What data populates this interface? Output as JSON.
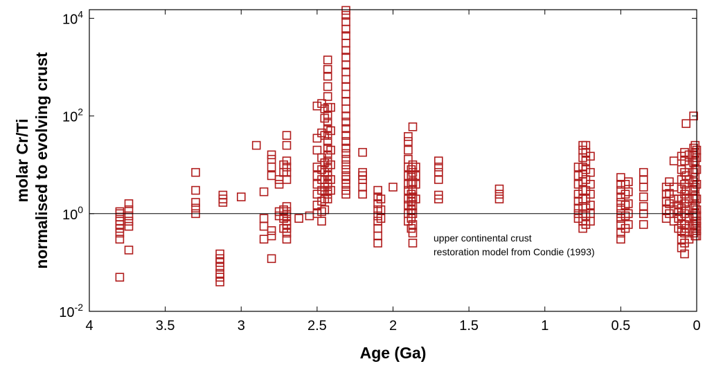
{
  "chart_data": {
    "type": "scatter",
    "xlabel": "Age (Ga)",
    "ylabel": [
      "molar Cr/Ti",
      "normalised to evolving crust"
    ],
    "x_reversed": true,
    "y_scale": "log",
    "xlim": [
      0,
      4
    ],
    "ylim": [
      0.01,
      15000
    ],
    "x_ticks": [
      "4",
      "3.5",
      "3",
      "2.5",
      "2",
      "1.5",
      "1",
      "0.5",
      "0"
    ],
    "y_ticks": [
      {
        "base": "10",
        "exp": "-2"
      },
      {
        "base": "10",
        "exp": "0"
      },
      {
        "base": "10",
        "exp": "2"
      },
      {
        "base": "10",
        "exp": "4"
      }
    ],
    "reference_line": {
      "y": 1
    },
    "annotation": [
      "upper continental crust",
      "restoration model from Condie (1993)"
    ],
    "marker": "open-square",
    "marker_color": "#b01c1c",
    "points": [
      [
        3.8,
        0.05
      ],
      [
        3.8,
        0.3
      ],
      [
        3.8,
        0.4
      ],
      [
        3.8,
        0.5
      ],
      [
        3.8,
        0.6
      ],
      [
        3.8,
        0.7
      ],
      [
        3.8,
        0.85
      ],
      [
        3.8,
        1.0
      ],
      [
        3.8,
        1.1
      ],
      [
        3.74,
        0.18
      ],
      [
        3.74,
        0.55
      ],
      [
        3.74,
        0.7
      ],
      [
        3.74,
        0.9
      ],
      [
        3.74,
        1.2
      ],
      [
        3.74,
        1.6
      ],
      [
        3.3,
        1.0
      ],
      [
        3.3,
        1.3
      ],
      [
        3.3,
        1.7
      ],
      [
        3.3,
        3.0
      ],
      [
        3.3,
        7.0
      ],
      [
        3.14,
        0.04
      ],
      [
        3.14,
        0.05
      ],
      [
        3.14,
        0.06
      ],
      [
        3.14,
        0.08
      ],
      [
        3.14,
        0.1
      ],
      [
        3.14,
        0.12
      ],
      [
        3.14,
        0.15
      ],
      [
        3.12,
        1.7
      ],
      [
        3.12,
        2.0
      ],
      [
        3.12,
        2.4
      ],
      [
        3.0,
        2.2
      ],
      [
        2.9,
        25
      ],
      [
        2.85,
        0.3
      ],
      [
        2.85,
        0.55
      ],
      [
        2.85,
        0.8
      ],
      [
        2.85,
        2.8
      ],
      [
        2.8,
        0.12
      ],
      [
        2.8,
        0.35
      ],
      [
        2.8,
        0.45
      ],
      [
        2.8,
        6
      ],
      [
        2.8,
        9
      ],
      [
        2.8,
        13
      ],
      [
        2.8,
        16
      ],
      [
        2.75,
        0.9
      ],
      [
        2.75,
        1.1
      ],
      [
        2.75,
        4
      ],
      [
        2.75,
        5
      ],
      [
        2.72,
        0.5
      ],
      [
        2.72,
        0.8
      ],
      [
        2.72,
        1.2
      ],
      [
        2.72,
        7
      ],
      [
        2.72,
        10
      ],
      [
        2.7,
        0.3
      ],
      [
        2.7,
        0.4
      ],
      [
        2.7,
        0.5
      ],
      [
        2.7,
        0.6
      ],
      [
        2.7,
        0.7
      ],
      [
        2.7,
        0.9
      ],
      [
        2.7,
        1.1
      ],
      [
        2.7,
        1.4
      ],
      [
        2.7,
        5
      ],
      [
        2.7,
        7
      ],
      [
        2.7,
        9
      ],
      [
        2.7,
        12
      ],
      [
        2.7,
        25
      ],
      [
        2.7,
        40
      ],
      [
        2.62,
        0.8
      ],
      [
        2.55,
        0.9
      ],
      [
        2.5,
        1.0
      ],
      [
        2.5,
        1.5
      ],
      [
        2.5,
        2.5
      ],
      [
        2.5,
        4
      ],
      [
        2.5,
        6
      ],
      [
        2.5,
        9
      ],
      [
        2.5,
        20
      ],
      [
        2.5,
        35
      ],
      [
        2.5,
        160
      ],
      [
        2.47,
        0.7
      ],
      [
        2.47,
        1.1
      ],
      [
        2.47,
        1.8
      ],
      [
        2.47,
        3
      ],
      [
        2.47,
        5
      ],
      [
        2.47,
        8
      ],
      [
        2.47,
        14
      ],
      [
        2.47,
        45
      ],
      [
        2.47,
        180
      ],
      [
        2.45,
        1.2
      ],
      [
        2.45,
        2
      ],
      [
        2.45,
        2.8
      ],
      [
        2.45,
        3.5
      ],
      [
        2.45,
        5
      ],
      [
        2.45,
        7
      ],
      [
        2.45,
        11
      ],
      [
        2.45,
        40
      ],
      [
        2.45,
        90
      ],
      [
        2.45,
        140
      ],
      [
        2.43,
        2
      ],
      [
        2.43,
        2.5
      ],
      [
        2.43,
        3
      ],
      [
        2.43,
        4
      ],
      [
        2.43,
        5
      ],
      [
        2.43,
        6
      ],
      [
        2.43,
        7
      ],
      [
        2.43,
        9
      ],
      [
        2.43,
        12
      ],
      [
        2.43,
        16
      ],
      [
        2.43,
        22
      ],
      [
        2.43,
        30
      ],
      [
        2.43,
        40
      ],
      [
        2.43,
        55
      ],
      [
        2.43,
        75
      ],
      [
        2.43,
        100
      ],
      [
        2.43,
        150
      ],
      [
        2.43,
        250
      ],
      [
        2.43,
        400
      ],
      [
        2.43,
        650
      ],
      [
        2.43,
        900
      ],
      [
        2.43,
        1400
      ],
      [
        2.41,
        3
      ],
      [
        2.41,
        5
      ],
      [
        2.41,
        10
      ],
      [
        2.41,
        20
      ],
      [
        2.41,
        50
      ],
      [
        2.41,
        150
      ],
      [
        2.31,
        2.5
      ],
      [
        2.31,
        3
      ],
      [
        2.31,
        4
      ],
      [
        2.31,
        5
      ],
      [
        2.31,
        6
      ],
      [
        2.31,
        8
      ],
      [
        2.31,
        10
      ],
      [
        2.31,
        13
      ],
      [
        2.31,
        17
      ],
      [
        2.31,
        22
      ],
      [
        2.31,
        30
      ],
      [
        2.31,
        40
      ],
      [
        2.31,
        55
      ],
      [
        2.31,
        75
      ],
      [
        2.31,
        100
      ],
      [
        2.31,
        140
      ],
      [
        2.31,
        200
      ],
      [
        2.31,
        280
      ],
      [
        2.31,
        400
      ],
      [
        2.31,
        560
      ],
      [
        2.31,
        800
      ],
      [
        2.31,
        1100
      ],
      [
        2.31,
        1600
      ],
      [
        2.31,
        2200
      ],
      [
        2.31,
        3100
      ],
      [
        2.31,
        4400
      ],
      [
        2.31,
        6000
      ],
      [
        2.31,
        8500
      ],
      [
        2.31,
        11500
      ],
      [
        2.31,
        14500
      ],
      [
        2.2,
        2.5
      ],
      [
        2.2,
        3.5
      ],
      [
        2.2,
        5
      ],
      [
        2.2,
        6
      ],
      [
        2.2,
        7
      ],
      [
        2.2,
        18
      ],
      [
        2.1,
        0.25
      ],
      [
        2.1,
        0.35
      ],
      [
        2.1,
        0.5
      ],
      [
        2.1,
        0.7
      ],
      [
        2.1,
        0.9
      ],
      [
        2.1,
        1.2
      ],
      [
        2.1,
        1.6
      ],
      [
        2.1,
        2.2
      ],
      [
        2.1,
        3
      ],
      [
        2.08,
        0.8
      ],
      [
        2.08,
        1.2
      ],
      [
        2.08,
        2
      ],
      [
        2.0,
        3.5
      ],
      [
        1.9,
        0.7
      ],
      [
        1.9,
        1.0
      ],
      [
        1.9,
        1.5
      ],
      [
        1.9,
        2
      ],
      [
        1.9,
        3
      ],
      [
        1.9,
        4
      ],
      [
        1.9,
        6
      ],
      [
        1.9,
        9
      ],
      [
        1.9,
        13
      ],
      [
        1.9,
        20
      ],
      [
        1.9,
        30
      ],
      [
        1.9,
        38
      ],
      [
        1.88,
        0.5
      ],
      [
        1.88,
        0.8
      ],
      [
        1.88,
        1.2
      ],
      [
        1.88,
        1.8
      ],
      [
        1.88,
        2.5
      ],
      [
        1.88,
        4
      ],
      [
        1.88,
        6
      ],
      [
        1.88,
        8
      ],
      [
        1.87,
        0.25
      ],
      [
        1.87,
        0.4
      ],
      [
        1.87,
        0.6
      ],
      [
        1.87,
        1.0
      ],
      [
        1.87,
        1.5
      ],
      [
        1.87,
        2.2
      ],
      [
        1.87,
        3
      ],
      [
        1.87,
        4.5
      ],
      [
        1.87,
        7
      ],
      [
        1.87,
        10
      ],
      [
        1.87,
        60
      ],
      [
        1.85,
        2
      ],
      [
        1.85,
        4
      ],
      [
        1.85,
        6
      ],
      [
        1.85,
        9
      ],
      [
        1.7,
        2.0
      ],
      [
        1.7,
        2.4
      ],
      [
        1.7,
        5
      ],
      [
        1.7,
        7
      ],
      [
        1.7,
        9
      ],
      [
        1.7,
        12
      ],
      [
        1.3,
        2.0
      ],
      [
        1.3,
        2.5
      ],
      [
        1.3,
        3.2
      ],
      [
        0.78,
        0.8
      ],
      [
        0.78,
        1.0
      ],
      [
        0.78,
        1.3
      ],
      [
        0.78,
        1.8
      ],
      [
        0.78,
        2.5
      ],
      [
        0.78,
        4
      ],
      [
        0.78,
        6
      ],
      [
        0.78,
        9
      ],
      [
        0.75,
        0.5
      ],
      [
        0.75,
        0.7
      ],
      [
        0.75,
        1.0
      ],
      [
        0.75,
        1.4
      ],
      [
        0.75,
        2
      ],
      [
        0.75,
        3
      ],
      [
        0.75,
        4.5
      ],
      [
        0.75,
        6.5
      ],
      [
        0.75,
        9
      ],
      [
        0.75,
        14
      ],
      [
        0.75,
        20
      ],
      [
        0.75,
        25
      ],
      [
        0.73,
        0.6
      ],
      [
        0.73,
        0.9
      ],
      [
        0.73,
        1.3
      ],
      [
        0.73,
        2
      ],
      [
        0.73,
        3
      ],
      [
        0.73,
        5
      ],
      [
        0.73,
        8
      ],
      [
        0.73,
        12
      ],
      [
        0.73,
        18
      ],
      [
        0.73,
        25
      ],
      [
        0.7,
        0.7
      ],
      [
        0.7,
        1.0
      ],
      [
        0.7,
        1.5
      ],
      [
        0.7,
        2.5
      ],
      [
        0.7,
        4
      ],
      [
        0.7,
        7
      ],
      [
        0.7,
        15
      ],
      [
        0.5,
        0.3
      ],
      [
        0.5,
        0.4
      ],
      [
        0.5,
        0.6
      ],
      [
        0.5,
        0.8
      ],
      [
        0.5,
        1.0
      ],
      [
        0.5,
        1.3
      ],
      [
        0.5,
        1.7
      ],
      [
        0.5,
        2.2
      ],
      [
        0.5,
        3
      ],
      [
        0.5,
        4
      ],
      [
        0.5,
        5.5
      ],
      [
        0.47,
        0.5
      ],
      [
        0.47,
        0.9
      ],
      [
        0.47,
        1.5
      ],
      [
        0.47,
        2.5
      ],
      [
        0.47,
        4
      ],
      [
        0.45,
        0.6
      ],
      [
        0.45,
        1.0
      ],
      [
        0.45,
        1.6
      ],
      [
        0.45,
        2.8
      ],
      [
        0.45,
        4.5
      ],
      [
        0.35,
        0.6
      ],
      [
        0.35,
        1.0
      ],
      [
        0.35,
        1.4
      ],
      [
        0.35,
        2.2
      ],
      [
        0.35,
        3.5
      ],
      [
        0.35,
        5
      ],
      [
        0.35,
        7
      ],
      [
        0.2,
        0.8
      ],
      [
        0.2,
        1.2
      ],
      [
        0.2,
        1.8
      ],
      [
        0.2,
        2.5
      ],
      [
        0.2,
        3.5
      ],
      [
        0.18,
        1.0
      ],
      [
        0.18,
        1.6
      ],
      [
        0.18,
        2.6
      ],
      [
        0.18,
        4.5
      ],
      [
        0.15,
        0.7
      ],
      [
        0.15,
        1.2
      ],
      [
        0.15,
        2
      ],
      [
        0.15,
        3.5
      ],
      [
        0.15,
        12
      ],
      [
        0.12,
        0.5
      ],
      [
        0.12,
        0.8
      ],
      [
        0.12,
        1.1
      ],
      [
        0.12,
        1.5
      ],
      [
        0.12,
        2
      ],
      [
        0.1,
        0.2
      ],
      [
        0.1,
        0.3
      ],
      [
        0.1,
        0.45
      ],
      [
        0.1,
        0.6
      ],
      [
        0.1,
        0.9
      ],
      [
        0.1,
        1.3
      ],
      [
        0.1,
        2
      ],
      [
        0.1,
        3.2
      ],
      [
        0.1,
        5
      ],
      [
        0.1,
        8
      ],
      [
        0.1,
        15
      ],
      [
        0.08,
        0.15
      ],
      [
        0.08,
        0.25
      ],
      [
        0.08,
        0.4
      ],
      [
        0.08,
        0.6
      ],
      [
        0.08,
        1.0
      ],
      [
        0.08,
        1.6
      ],
      [
        0.08,
        2.5
      ],
      [
        0.08,
        4
      ],
      [
        0.08,
        7
      ],
      [
        0.08,
        12
      ],
      [
        0.08,
        18
      ],
      [
        0.07,
        0.5
      ],
      [
        0.07,
        1.2
      ],
      [
        0.07,
        3
      ],
      [
        0.07,
        6
      ],
      [
        0.07,
        70
      ],
      [
        0.05,
        0.3
      ],
      [
        0.05,
        0.8
      ],
      [
        0.05,
        2
      ],
      [
        0.05,
        5
      ],
      [
        0.05,
        10
      ],
      [
        0.05,
        16
      ],
      [
        0.02,
        0.4
      ],
      [
        0.02,
        0.6
      ],
      [
        0.02,
        0.9
      ],
      [
        0.02,
        1.3
      ],
      [
        0.02,
        2
      ],
      [
        0.02,
        3
      ],
      [
        0.02,
        4.5
      ],
      [
        0.02,
        7
      ],
      [
        0.02,
        11
      ],
      [
        0.02,
        16
      ],
      [
        0.02,
        22
      ],
      [
        0.02,
        100
      ],
      [
        0.01,
        0.35
      ],
      [
        0.01,
        0.5
      ],
      [
        0.01,
        0.7
      ],
      [
        0.01,
        1.0
      ],
      [
        0.01,
        1.5
      ],
      [
        0.01,
        2.3
      ],
      [
        0.01,
        3.5
      ],
      [
        0.01,
        5.5
      ],
      [
        0.01,
        8
      ],
      [
        0.01,
        12
      ],
      [
        0.01,
        18
      ],
      [
        0.01,
        25
      ],
      [
        0.0,
        0.35
      ],
      [
        0.0,
        0.45
      ],
      [
        0.0,
        0.55
      ],
      [
        0.0,
        0.7
      ],
      [
        0.0,
        0.9
      ],
      [
        0.0,
        1.2
      ],
      [
        0.0,
        2
      ],
      [
        0.0,
        4
      ],
      [
        0.0,
        8
      ],
      [
        0.0,
        14
      ],
      [
        0.0,
        20
      ]
    ]
  }
}
